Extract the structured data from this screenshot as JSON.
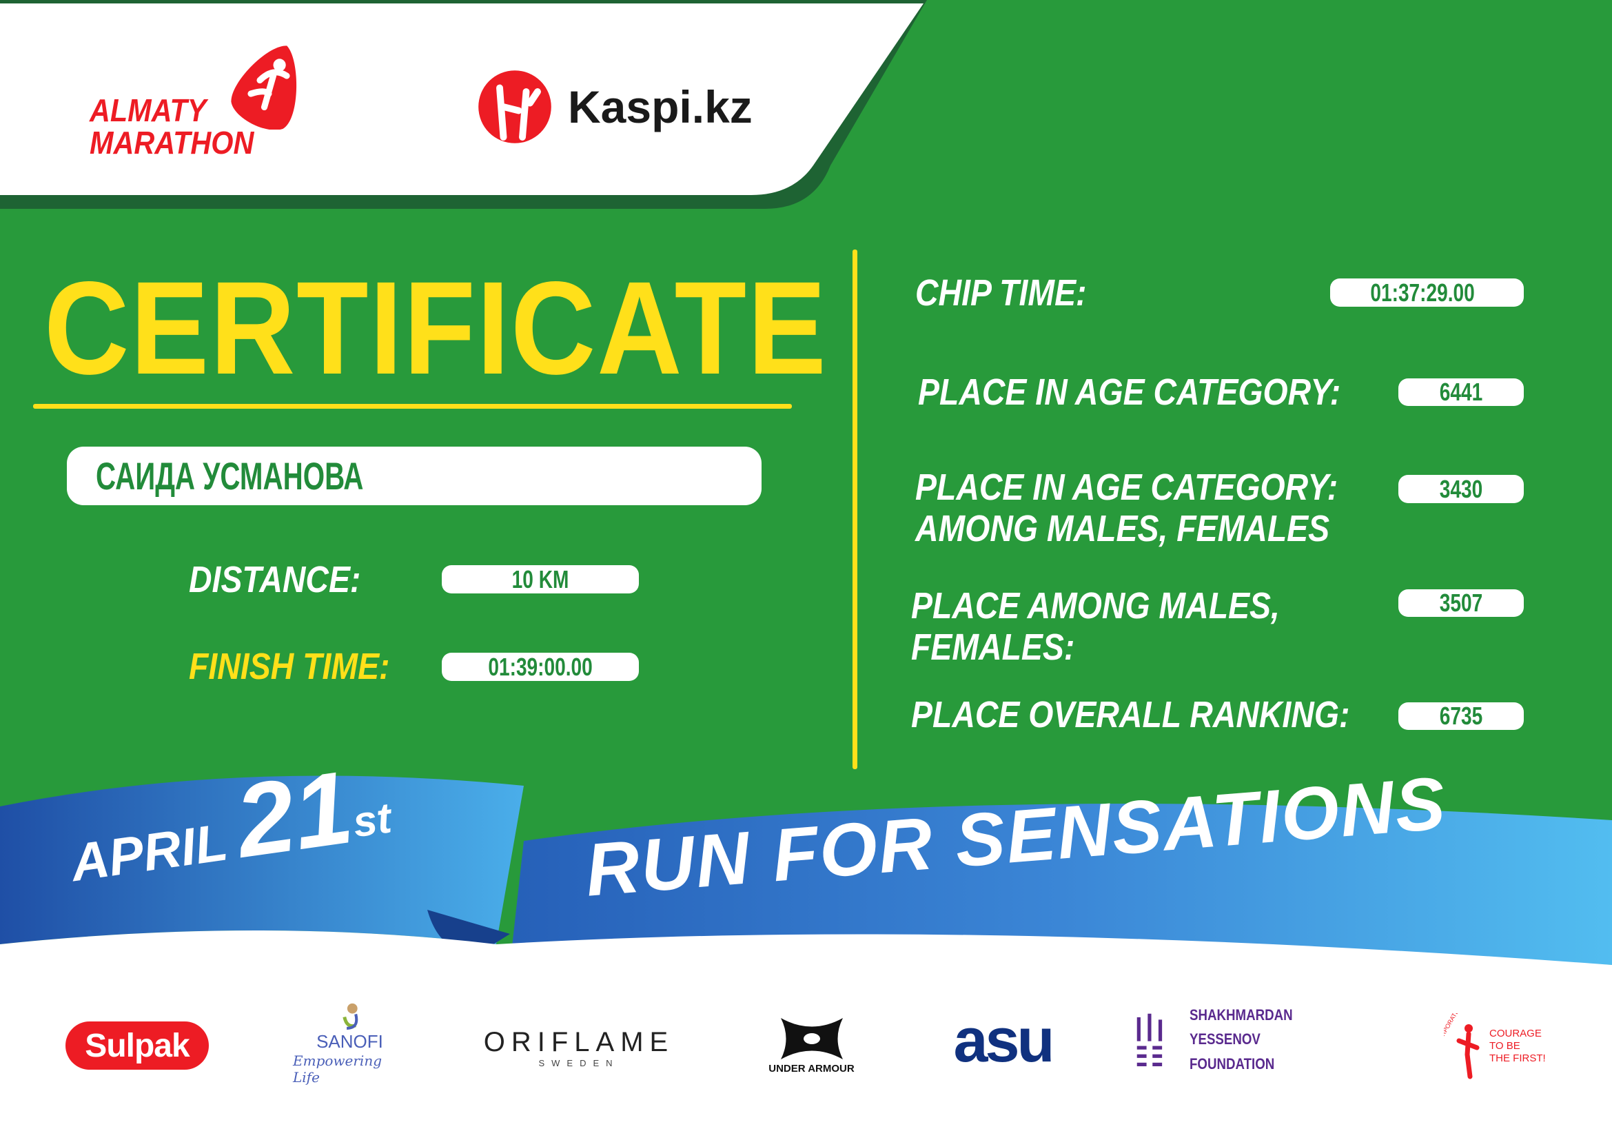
{
  "header": {
    "event_logo_line1": "ALMATY",
    "event_logo_line2": "MARATHON",
    "sponsor_logo": "Kaspi.kz"
  },
  "certificate": {
    "title": "CERTIFICATE",
    "participant_name": "САИДА УСМАНОВА",
    "distance_label": "DISTANCE:",
    "distance_value": "10 KM",
    "finish_time_label": "FINISH TIME:",
    "finish_time_value": "01:39:00.00"
  },
  "results": {
    "chip_time_label": "CHIP TIME:",
    "chip_time_value": "01:37:29.00",
    "age_category_label": "PLACE IN AGE CATEGORY:",
    "age_category_value": "6441",
    "age_gender_label_line1": "PLACE IN AGE CATEGORY:",
    "age_gender_label_line2": "AMONG MALES, FEMALES",
    "age_gender_value": "3430",
    "gender_label_line1": "PLACE AMONG MALES,",
    "gender_label_line2": "FEMALES:",
    "gender_value": "3507",
    "overall_label": "PLACE OVERALL RANKING:",
    "overall_value": "6735"
  },
  "ribbon": {
    "month": "APRIL",
    "day": "21",
    "suffix": "st",
    "slogan": "RUN FOR SENSATIONS"
  },
  "sponsors": {
    "sulpak": "Sulpak",
    "sanofi": "SANOFI",
    "sanofi_tagline": "Empowering Life",
    "oriflame": "ORIFLAME",
    "oriflame_sub": "SWEDEN",
    "under_armour": "UNDER ARMOUR",
    "asu": "asu",
    "yessenov_line1": "SHAKHMARDAN YESSENOV",
    "yessenov_line2": "FOUNDATION",
    "courage_fund": "CORPORATE FUND",
    "courage_line1": "COURAGE",
    "courage_line2": "TO BE",
    "courage_line3": "THE FIRST!"
  },
  "colors": {
    "green": "#289a3b",
    "dark_green": "#1e6333",
    "yellow": "#ffe01a",
    "red": "#ed1c24",
    "blue": "#2f7fd0"
  }
}
